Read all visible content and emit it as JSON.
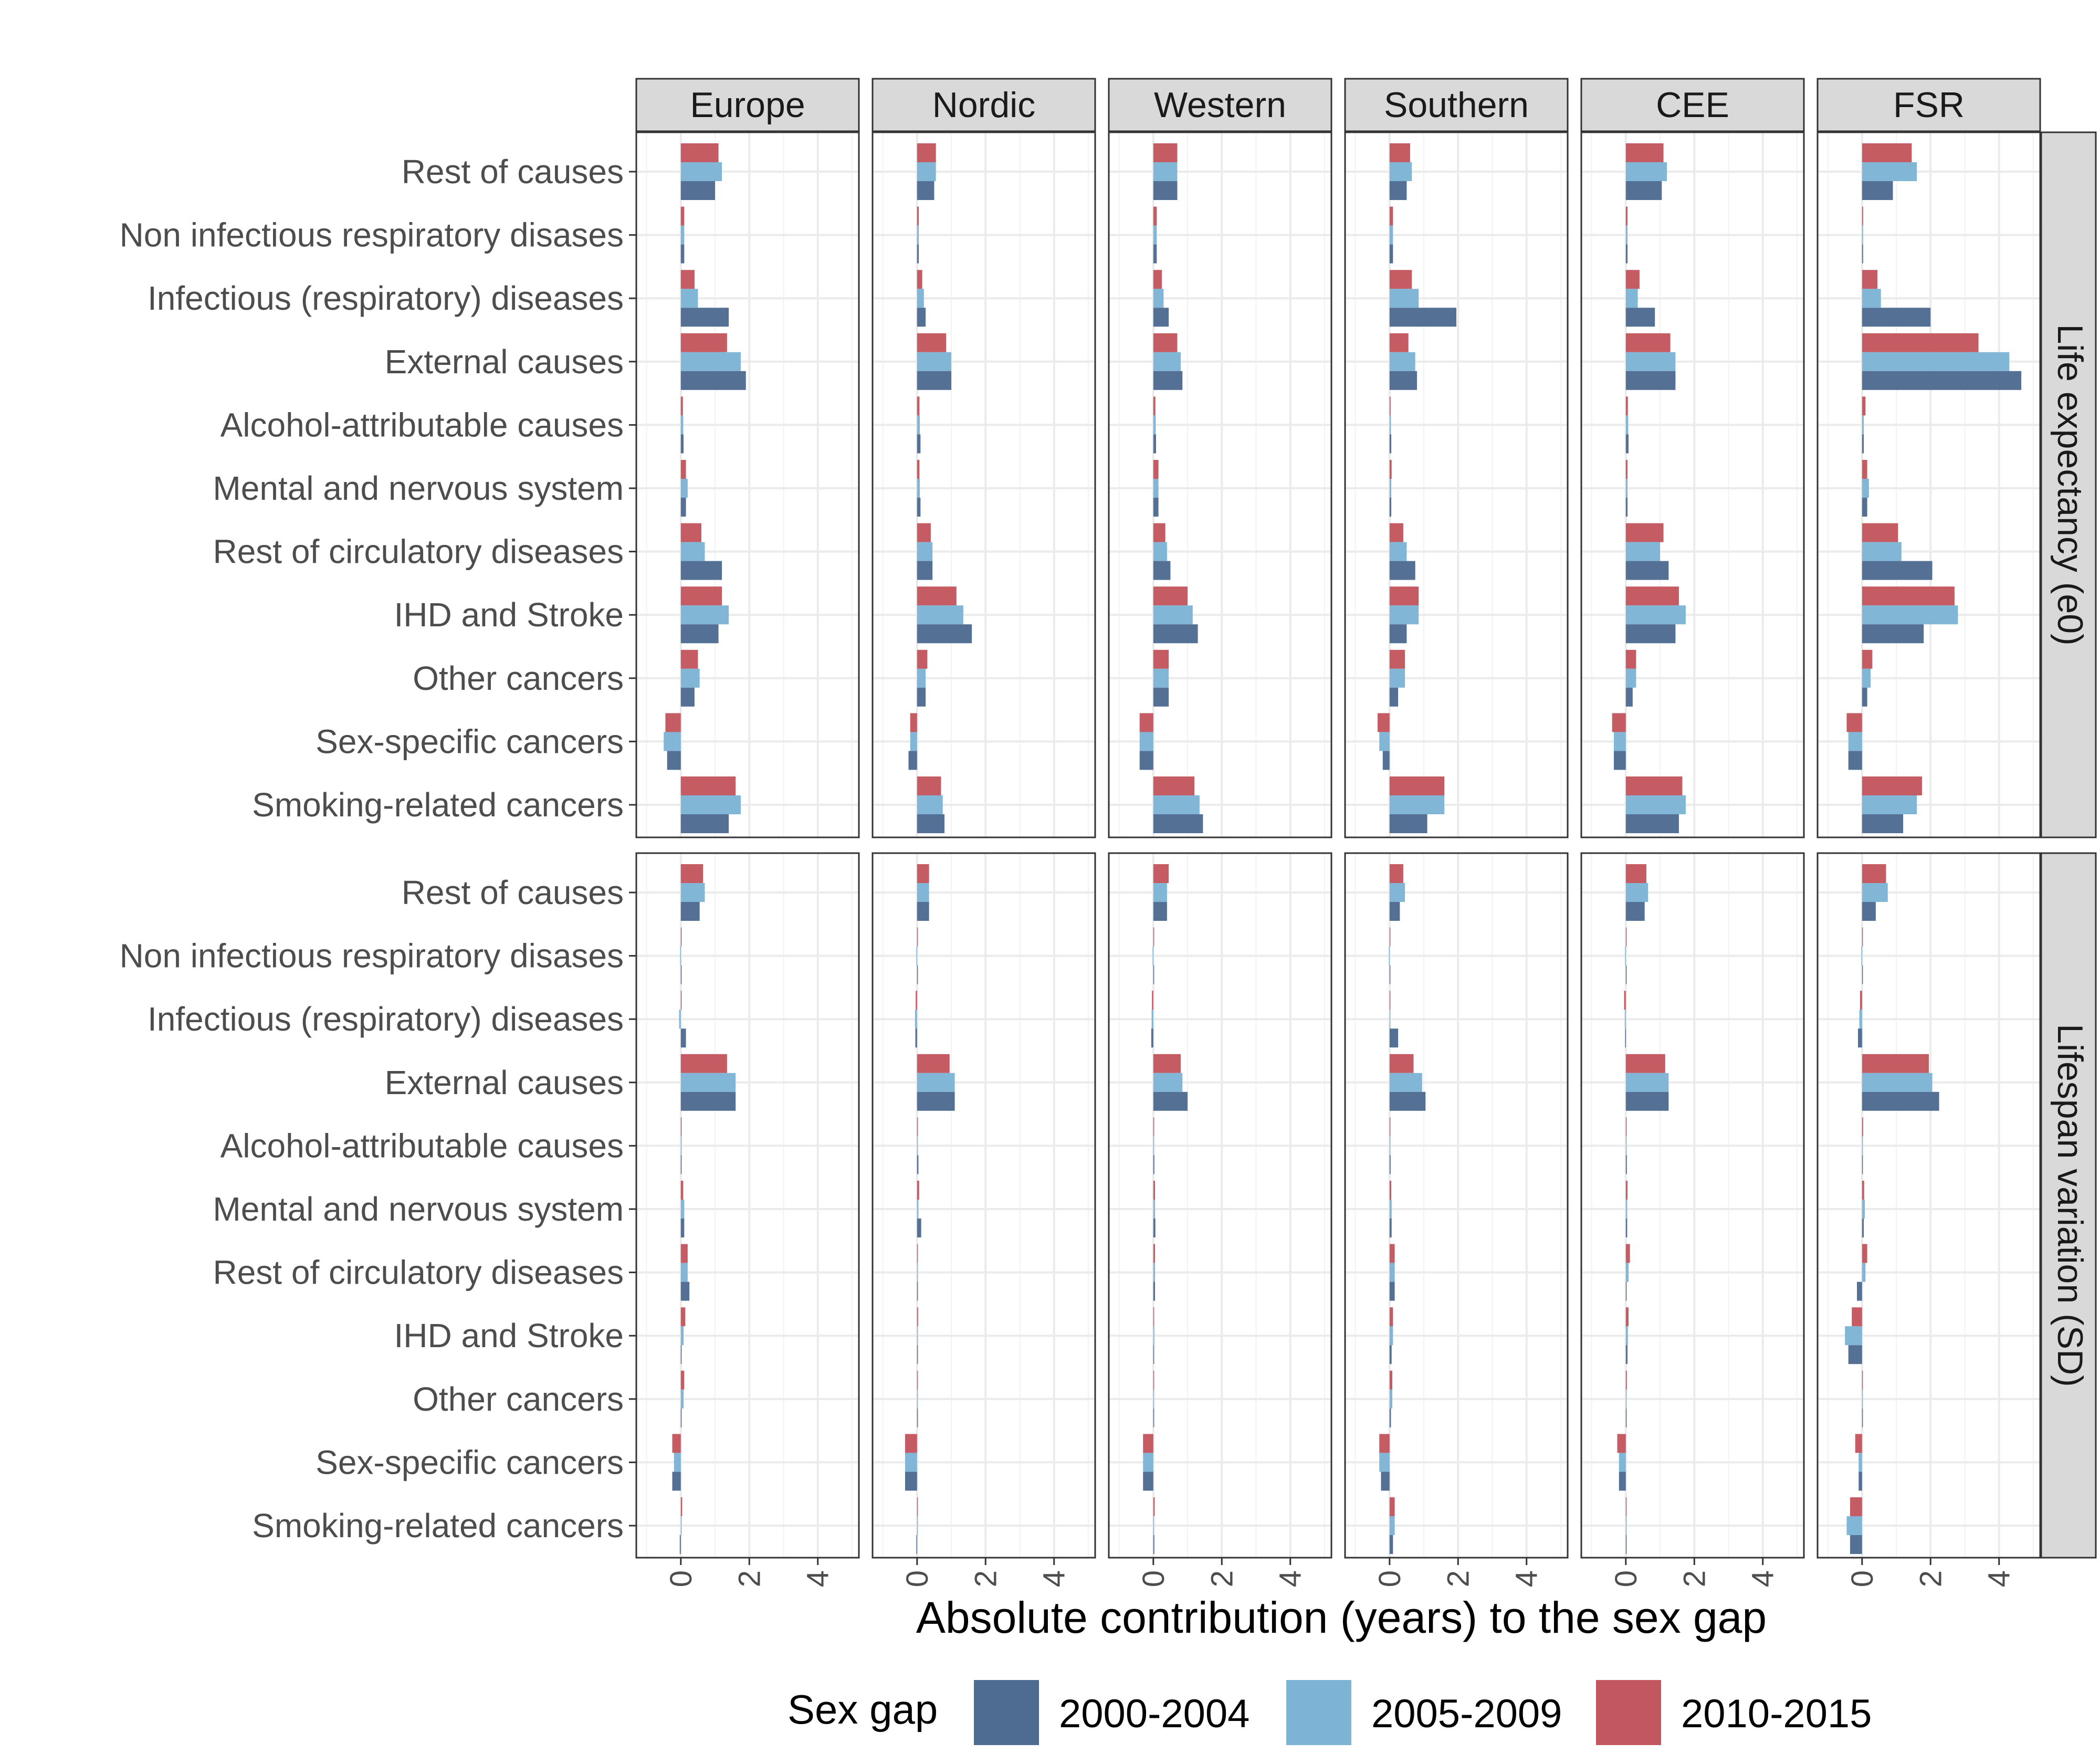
{
  "chart_data": {
    "type": "bar",
    "orientation": "horizontal",
    "facet_columns": [
      "Europe",
      "Nordic",
      "Western",
      "Southern",
      "CEE",
      "FSR"
    ],
    "facet_rows": [
      "Life expectancy (e0)",
      "Lifespan variation (SD)"
    ],
    "categories": [
      "Rest of causes",
      "Non infectious respiratory disases",
      "Infectious (respiratory) diseases",
      "External causes",
      "Alcohol-attributable causes",
      "Mental and nervous system",
      "Rest of circulatory diseases",
      "IHD and Stroke",
      "Other cancers",
      "Sex-specific cancers",
      "Smoking-related cancers"
    ],
    "xlabel": "Absolute contribution (years) to the sex gap",
    "xticks": [
      "0",
      "2",
      "4"
    ],
    "xlim": [
      -1.3,
      5.2
    ],
    "grid": true,
    "legend": {
      "title": "Sex gap",
      "position": "bottom",
      "items": [
        {
          "name": "2000-2004",
          "color": "#4e6b92"
        },
        {
          "name": "2005-2009",
          "color": "#7db4d6"
        },
        {
          "name": "2010-2015",
          "color": "#c3575f"
        }
      ]
    },
    "colors": {
      "2000-2004": "#4e6b92",
      "2005-2009": "#7db4d6",
      "2010-2015": "#c3575f"
    },
    "series_order": [
      "2000-2004",
      "2005-2009",
      "2010-2015"
    ],
    "panels": {
      "Life expectancy (e0)": {
        "Europe": {
          "2000-2004": [
            1.0,
            0.1,
            1.4,
            1.9,
            0.08,
            0.15,
            1.2,
            1.1,
            0.4,
            -0.4,
            1.4
          ],
          "2005-2009": [
            1.2,
            0.1,
            0.5,
            1.75,
            0.07,
            0.2,
            0.7,
            1.4,
            0.55,
            -0.5,
            1.75
          ],
          "2010-2015": [
            1.1,
            0.1,
            0.4,
            1.35,
            0.06,
            0.15,
            0.6,
            1.2,
            0.5,
            -0.45,
            1.6
          ]
        },
        "Nordic": {
          "2000-2004": [
            0.5,
            0.05,
            0.25,
            1.0,
            0.1,
            0.1,
            0.45,
            1.6,
            0.25,
            -0.25,
            0.8
          ],
          "2005-2009": [
            0.55,
            0.05,
            0.2,
            1.0,
            0.08,
            0.08,
            0.45,
            1.35,
            0.25,
            -0.2,
            0.75
          ],
          "2010-2015": [
            0.55,
            0.05,
            0.15,
            0.85,
            0.07,
            0.07,
            0.4,
            1.15,
            0.3,
            -0.2,
            0.7
          ]
        },
        "Western": {
          "2000-2004": [
            0.7,
            0.1,
            0.45,
            0.85,
            0.08,
            0.15,
            0.5,
            1.3,
            0.45,
            -0.4,
            1.45
          ],
          "2005-2009": [
            0.7,
            0.1,
            0.3,
            0.8,
            0.07,
            0.15,
            0.4,
            1.15,
            0.45,
            -0.4,
            1.35
          ],
          "2010-2015": [
            0.7,
            0.1,
            0.25,
            0.7,
            0.06,
            0.15,
            0.35,
            1.0,
            0.45,
            -0.4,
            1.2
          ]
        },
        "Southern": {
          "2000-2004": [
            0.5,
            0.1,
            1.95,
            0.8,
            0.05,
            0.05,
            0.75,
            0.5,
            0.25,
            -0.2,
            1.1
          ],
          "2005-2009": [
            0.65,
            0.1,
            0.85,
            0.75,
            0.04,
            0.05,
            0.5,
            0.85,
            0.45,
            -0.3,
            1.6
          ],
          "2010-2015": [
            0.6,
            0.1,
            0.65,
            0.55,
            0.03,
            0.06,
            0.4,
            0.85,
            0.45,
            -0.35,
            1.6
          ]
        },
        "CEE": {
          "2000-2004": [
            1.05,
            0.05,
            0.85,
            1.45,
            0.08,
            0.05,
            1.25,
            1.45,
            0.2,
            -0.35,
            1.55
          ],
          "2005-2009": [
            1.2,
            0.05,
            0.35,
            1.45,
            0.07,
            0.05,
            1.0,
            1.75,
            0.3,
            -0.35,
            1.75
          ],
          "2010-2015": [
            1.1,
            0.05,
            0.4,
            1.3,
            0.06,
            0.05,
            1.1,
            1.55,
            0.3,
            -0.4,
            1.65
          ]
        },
        "FSR": {
          "2000-2004": [
            0.9,
            0.03,
            2.0,
            4.65,
            0.05,
            0.15,
            2.05,
            1.8,
            0.15,
            -0.4,
            1.2
          ],
          "2005-2009": [
            1.6,
            0.03,
            0.55,
            4.3,
            0.05,
            0.2,
            1.15,
            2.8,
            0.25,
            -0.4,
            1.6
          ],
          "2010-2015": [
            1.45,
            0.03,
            0.45,
            3.4,
            0.1,
            0.15,
            1.05,
            2.7,
            0.3,
            -0.45,
            1.75
          ]
        }
      },
      "Lifespan variation (SD)": {
        "Europe": {
          "2000-2004": [
            0.55,
            0.02,
            0.15,
            1.6,
            0.02,
            0.1,
            0.25,
            0.02,
            0.02,
            -0.25,
            -0.03
          ],
          "2005-2009": [
            0.7,
            -0.02,
            -0.05,
            1.6,
            0.02,
            0.1,
            0.2,
            0.08,
            0.08,
            -0.2,
            0.02
          ],
          "2010-2015": [
            0.65,
            0.01,
            0.02,
            1.35,
            0.02,
            0.07,
            0.2,
            0.13,
            0.1,
            -0.25,
            0.04
          ]
        },
        "Nordic": {
          "2000-2004": [
            0.35,
            0.01,
            -0.05,
            1.1,
            0.04,
            0.12,
            0.02,
            0.02,
            0.02,
            -0.35,
            -0.02
          ],
          "2005-2009": [
            0.35,
            -0.02,
            -0.06,
            1.1,
            0.02,
            0.04,
            0.02,
            0.02,
            0.01,
            -0.35,
            0.01
          ],
          "2010-2015": [
            0.35,
            0.01,
            -0.04,
            0.95,
            0.02,
            0.06,
            0.02,
            0.03,
            0.02,
            -0.35,
            0.02
          ]
        },
        "Western": {
          "2000-2004": [
            0.4,
            0.02,
            -0.06,
            1.0,
            0.03,
            0.06,
            0.05,
            0.02,
            0.02,
            -0.3,
            0.03
          ],
          "2005-2009": [
            0.4,
            -0.02,
            -0.05,
            0.85,
            0.02,
            0.05,
            0.05,
            0.03,
            0.02,
            -0.3,
            0.02
          ],
          "2010-2015": [
            0.45,
            0.01,
            -0.04,
            0.8,
            0.02,
            0.05,
            0.05,
            0.02,
            0.02,
            -0.3,
            0.04
          ]
        },
        "Southern": {
          "2000-2004": [
            0.3,
            0.02,
            0.25,
            1.05,
            0.03,
            0.06,
            0.15,
            0.06,
            0.04,
            -0.25,
            0.1
          ],
          "2005-2009": [
            0.45,
            -0.02,
            0.02,
            0.95,
            0.02,
            0.06,
            0.15,
            0.1,
            0.08,
            -0.3,
            0.15
          ],
          "2010-2015": [
            0.4,
            0.01,
            0.01,
            0.7,
            0.02,
            0.05,
            0.15,
            0.1,
            0.08,
            -0.3,
            0.15
          ]
        },
        "CEE": {
          "2000-2004": [
            0.55,
            0.02,
            -0.02,
            1.25,
            0.03,
            0.04,
            0.02,
            0.05,
            0.02,
            -0.2,
            0.02
          ],
          "2005-2009": [
            0.65,
            -0.02,
            -0.03,
            1.25,
            0.02,
            0.04,
            0.08,
            0.06,
            0.02,
            -0.2,
            0.01
          ],
          "2010-2015": [
            0.6,
            0.01,
            -0.05,
            1.15,
            0.02,
            0.05,
            0.12,
            0.08,
            0.03,
            -0.25,
            0.02
          ]
        },
        "FSR": {
          "2000-2004": [
            0.4,
            0.02,
            -0.12,
            2.25,
            0.02,
            0.05,
            -0.15,
            -0.4,
            0.02,
            -0.1,
            -0.35
          ],
          "2005-2009": [
            0.75,
            -0.02,
            -0.08,
            2.05,
            0.02,
            0.08,
            0.1,
            -0.5,
            0.02,
            -0.1,
            -0.45
          ],
          "2010-2015": [
            0.7,
            0.01,
            -0.06,
            1.95,
            0.03,
            0.06,
            0.15,
            -0.3,
            0.02,
            -0.2,
            -0.35
          ]
        }
      }
    }
  }
}
